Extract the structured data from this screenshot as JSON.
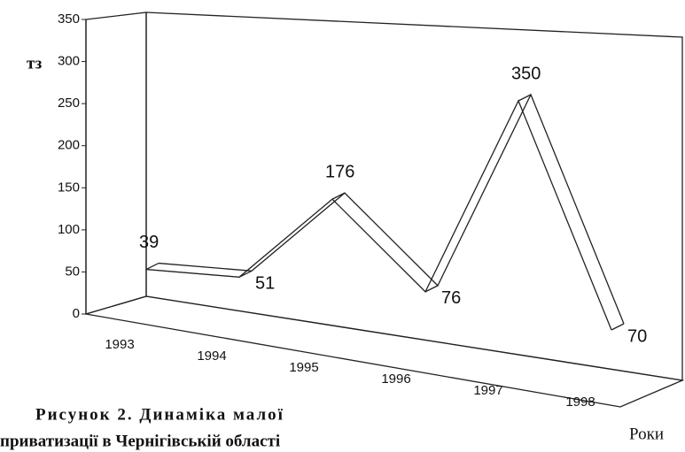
{
  "chart_data": {
    "type": "line3d",
    "ylabel": "тз",
    "xlabel": "Роки",
    "caption": [
      "Рисунок 2. Динаміка малої",
      "приватизації в Чернігівській області"
    ],
    "categories": [
      "1993",
      "1994",
      "1995",
      "1996",
      "1997",
      "1998"
    ],
    "values": [
      39,
      51,
      176,
      76,
      350,
      70
    ],
    "color": "#ffffff",
    "ylim": [
      0,
      350
    ],
    "yticks": [
      0,
      50,
      100,
      150,
      200,
      250,
      300,
      350
    ],
    "grid": false
  }
}
